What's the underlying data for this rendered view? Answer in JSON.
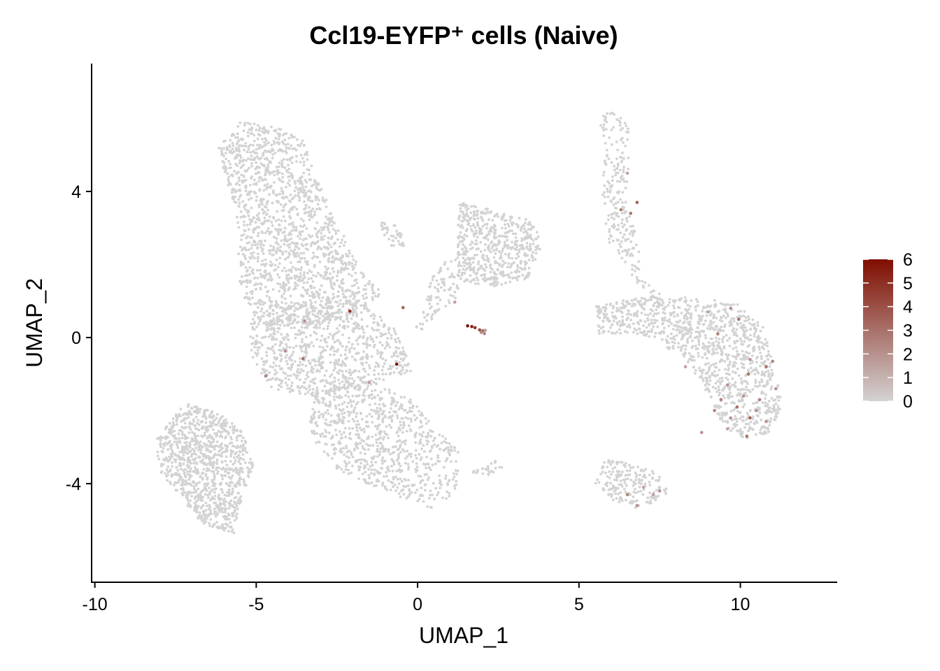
{
  "chart_data": {
    "type": "scatter",
    "title": "Ccl19-EYFP⁺ cells (Naive)",
    "xlabel": "UMAP_1",
    "ylabel": "UMAP_2",
    "xlim": [
      -10.1,
      13
    ],
    "ylim": [
      -6.7,
      7.5
    ],
    "x_ticks": [
      -10,
      -5,
      0,
      5,
      10
    ],
    "x_tick_labels": [
      "-10",
      "-5",
      "0",
      "5",
      "10"
    ],
    "y_ticks": [
      -4,
      0,
      4
    ],
    "y_tick_labels": [
      "-4",
      "0",
      "4"
    ],
    "grid": false,
    "legend": {
      "placement": "right",
      "type": "colorbar",
      "min": 0,
      "max": 6,
      "ticks": [
        0,
        1,
        2,
        3,
        4,
        5,
        6
      ],
      "tick_labels": [
        "0",
        "1",
        "2",
        "3",
        "4",
        "5",
        "6"
      ],
      "color_low": "#d3d3d3",
      "color_high": "#7f0e00"
    },
    "clusters_background_color": "#d3d3d3",
    "cell_regions": [
      {
        "name": "upper-left arm",
        "polygon": [
          [
            -6.2,
            5.2
          ],
          [
            -5.5,
            5.9
          ],
          [
            -4.5,
            5.8
          ],
          [
            -3.6,
            5.5
          ],
          [
            -3.1,
            4.3
          ],
          [
            -2.3,
            2.8
          ],
          [
            -1.7,
            1.8
          ],
          [
            -1.1,
            1.2
          ],
          [
            -1.9,
            0.6
          ],
          [
            -3.2,
            0.3
          ],
          [
            -4.8,
            0.2
          ],
          [
            -5.5,
            1.3
          ],
          [
            -5.6,
            3.3
          ]
        ],
        "count": 1500
      },
      {
        "name": "center body",
        "polygon": [
          [
            -5.3,
            0.6
          ],
          [
            -2.2,
            1.3
          ],
          [
            -0.8,
            0.4
          ],
          [
            -0.1,
            -0.9
          ],
          [
            -1.6,
            -1.3
          ],
          [
            -3.1,
            -1.6
          ],
          [
            -4.4,
            -1.5
          ],
          [
            -5.1,
            -0.7
          ]
        ],
        "count": 800
      },
      {
        "name": "lower-right arm",
        "polygon": [
          [
            -3.1,
            -1.2
          ],
          [
            -1.3,
            -1.2
          ],
          [
            -0.2,
            -1.7
          ],
          [
            0.7,
            -2.6
          ],
          [
            1.3,
            -3.1
          ],
          [
            1.2,
            -4.2
          ],
          [
            0.5,
            -4.7
          ],
          [
            -0.6,
            -4.4
          ],
          [
            -2.4,
            -3.7
          ],
          [
            -3.4,
            -2.6
          ]
        ],
        "count": 800
      },
      {
        "name": "lower-left arm",
        "polygon": [
          [
            -8.1,
            -2.8
          ],
          [
            -7.2,
            -1.8
          ],
          [
            -6.1,
            -2.1
          ],
          [
            -5.4,
            -2.6
          ],
          [
            -5.1,
            -3.5
          ],
          [
            -5.5,
            -4.6
          ],
          [
            -5.7,
            -5.4
          ],
          [
            -6.7,
            -5.1
          ],
          [
            -7.3,
            -4.4
          ],
          [
            -8.0,
            -3.7
          ]
        ],
        "count": 1000
      },
      {
        "name": "upper-left offshoot",
        "polygon": [
          [
            -1.2,
            3.2
          ],
          [
            -0.6,
            3.1
          ],
          [
            -0.4,
            2.5
          ],
          [
            -0.9,
            2.5
          ]
        ],
        "count": 40
      },
      {
        "name": "center-right upper",
        "polygon": [
          [
            1.3,
            3.7
          ],
          [
            2.3,
            3.5
          ],
          [
            3.5,
            3.2
          ],
          [
            3.9,
            2.6
          ],
          [
            3.4,
            1.6
          ],
          [
            2.4,
            1.4
          ],
          [
            1.3,
            1.5
          ],
          [
            1.2,
            2.4
          ]
        ],
        "count": 550
      },
      {
        "name": "bridge",
        "polygon": [
          [
            0.6,
            2.0
          ],
          [
            1.3,
            2.2
          ],
          [
            1.3,
            1.1
          ],
          [
            0.6,
            0.7
          ],
          [
            0.2,
            0.2
          ],
          [
            -0.1,
            0.2
          ]
        ],
        "count": 90
      },
      {
        "name": "top right stem",
        "polygon": [
          [
            5.5,
            6.1
          ],
          [
            6.3,
            6.2
          ],
          [
            6.6,
            5.6
          ],
          [
            6.5,
            3.5
          ],
          [
            6.9,
            2.6
          ],
          [
            6.9,
            1.6
          ],
          [
            7.6,
            1.2
          ],
          [
            7.4,
            0.9
          ],
          [
            6.7,
            1.6
          ],
          [
            5.9,
            2.6
          ],
          [
            5.7,
            4.0
          ],
          [
            5.8,
            5.4
          ]
        ],
        "count": 230
      },
      {
        "name": "right main cluster",
        "polygon": [
          [
            5.5,
            0.9
          ],
          [
            6.8,
            1.1
          ],
          [
            7.7,
            1.1
          ],
          [
            8.7,
            1.1
          ],
          [
            10.0,
            0.9
          ],
          [
            10.7,
            0.3
          ],
          [
            11.1,
            -1.0
          ],
          [
            11.3,
            -1.9
          ],
          [
            10.9,
            -2.6
          ],
          [
            10.0,
            -2.8
          ],
          [
            9.4,
            -2.3
          ],
          [
            8.9,
            -1.4
          ],
          [
            8.3,
            -0.6
          ],
          [
            7.4,
            -0.1
          ],
          [
            6.7,
            0.1
          ],
          [
            5.6,
            0.1
          ]
        ],
        "count": 1100
      },
      {
        "name": "right bottom blob",
        "polygon": [
          [
            5.8,
            -3.3
          ],
          [
            6.8,
            -3.5
          ],
          [
            7.5,
            -3.7
          ],
          [
            7.8,
            -4.3
          ],
          [
            7.2,
            -4.6
          ],
          [
            6.5,
            -4.7
          ],
          [
            5.8,
            -4.3
          ],
          [
            5.5,
            -4.0
          ]
        ],
        "count": 190
      },
      {
        "name": "small tail",
        "polygon": [
          [
            1.6,
            -3.7
          ],
          [
            2.6,
            -3.3
          ],
          [
            2.8,
            -3.5
          ],
          [
            2.1,
            -3.8
          ]
        ],
        "count": 25
      }
    ],
    "expressing_cells": [
      {
        "x": 1.55,
        "y": 0.32,
        "value": 6.0
      },
      {
        "x": 1.68,
        "y": 0.3,
        "value": 5.5
      },
      {
        "x": 1.78,
        "y": 0.27,
        "value": 5.0
      },
      {
        "x": 1.92,
        "y": 0.21,
        "value": 4.0
      },
      {
        "x": 2.02,
        "y": 0.19,
        "value": 3.0
      },
      {
        "x": 2.07,
        "y": 0.11,
        "value": 2.5
      },
      {
        "x": 1.97,
        "y": 0.14,
        "value": 2.0
      },
      {
        "x": 2.1,
        "y": 0.2,
        "value": 1.5
      },
      {
        "x": -2.1,
        "y": 0.72,
        "value": 5.0
      },
      {
        "x": -0.65,
        "y": -0.73,
        "value": 6.0
      },
      {
        "x": -0.45,
        "y": 0.82,
        "value": 3.5
      },
      {
        "x": -3.55,
        "y": -0.58,
        "value": 3.0
      },
      {
        "x": -4.7,
        "y": -1.05,
        "value": 2.5
      },
      {
        "x": -3.5,
        "y": 0.45,
        "value": 2.0
      },
      {
        "x": -1.5,
        "y": -1.23,
        "value": 1.5
      },
      {
        "x": -4.1,
        "y": -0.37,
        "value": 2.0
      },
      {
        "x": 1.15,
        "y": 0.97,
        "value": 1.5
      },
      {
        "x": 6.6,
        "y": 3.4,
        "value": 3.0
      },
      {
        "x": 6.8,
        "y": 3.7,
        "value": 3.5
      },
      {
        "x": 6.3,
        "y": 3.5,
        "value": 2.5
      },
      {
        "x": 6.5,
        "y": 4.5,
        "value": 1.5
      },
      {
        "x": 9.7,
        "y": 0.8,
        "value": 2.0
      },
      {
        "x": 9.95,
        "y": 0.5,
        "value": 3.0
      },
      {
        "x": 9.3,
        "y": 0.1,
        "value": 2.5
      },
      {
        "x": 10.3,
        "y": -0.6,
        "value": 2.0
      },
      {
        "x": 10.8,
        "y": -0.8,
        "value": 3.0
      },
      {
        "x": 11.0,
        "y": -0.65,
        "value": 2.5
      },
      {
        "x": 10.25,
        "y": -1.0,
        "value": 3.0
      },
      {
        "x": 9.6,
        "y": -1.3,
        "value": 2.0
      },
      {
        "x": 9.4,
        "y": -1.7,
        "value": 2.5
      },
      {
        "x": 10.1,
        "y": -1.6,
        "value": 2.0
      },
      {
        "x": 10.6,
        "y": -1.7,
        "value": 2.5
      },
      {
        "x": 9.9,
        "y": -1.9,
        "value": 3.0
      },
      {
        "x": 9.2,
        "y": -2.0,
        "value": 2.5
      },
      {
        "x": 9.7,
        "y": -2.2,
        "value": 2.0
      },
      {
        "x": 10.3,
        "y": -2.2,
        "value": 3.5
      },
      {
        "x": 10.8,
        "y": -2.3,
        "value": 2.0
      },
      {
        "x": 10.2,
        "y": -2.7,
        "value": 3.0
      },
      {
        "x": 9.6,
        "y": -2.5,
        "value": 1.5
      },
      {
        "x": 10.5,
        "y": -2.0,
        "value": 2.0
      },
      {
        "x": 8.3,
        "y": -0.8,
        "value": 1.5
      },
      {
        "x": 8.8,
        "y": -2.6,
        "value": 2.0
      },
      {
        "x": 9.0,
        "y": 0.7,
        "value": 1.5
      },
      {
        "x": 11.1,
        "y": -1.4,
        "value": 2.0
      },
      {
        "x": 6.5,
        "y": -4.3,
        "value": 2.5
      },
      {
        "x": 6.8,
        "y": -4.6,
        "value": 2.0
      },
      {
        "x": 7.3,
        "y": -4.3,
        "value": 1.5
      },
      {
        "x": 7.5,
        "y": -4.2,
        "value": 2.0
      },
      {
        "x": 7.0,
        "y": -4.1,
        "value": 1.5
      }
    ]
  }
}
